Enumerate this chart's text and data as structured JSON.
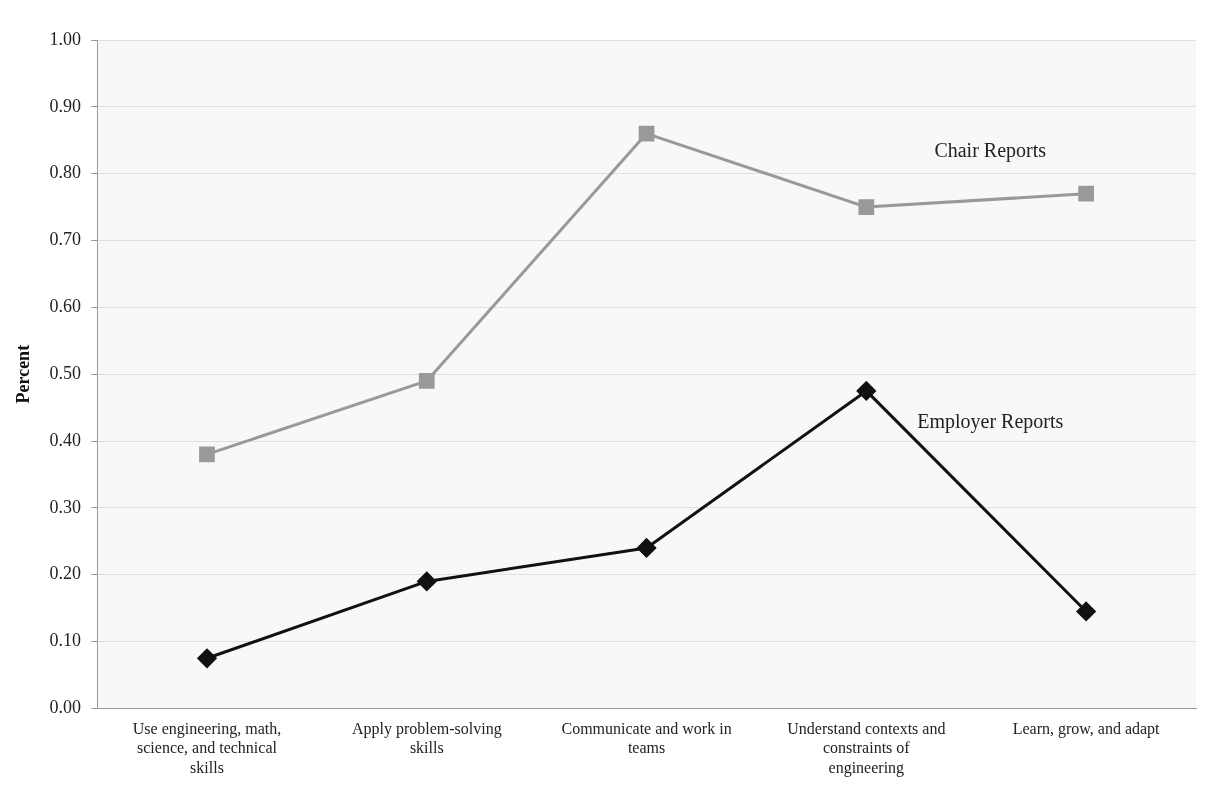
{
  "chart_data": {
    "type": "line",
    "ylabel": "Percent",
    "categories": [
      "Use engineering, math, science, and technical skills",
      "Apply problem-solving skills",
      "Communicate and work in teams",
      "Understand contexts and constraints of engineering",
      "Learn, grow, and adapt"
    ],
    "series": [
      {
        "name": "Chair Reports",
        "color": "#999999",
        "marker": "square",
        "values": [
          0.38,
          0.49,
          0.86,
          0.75,
          0.77
        ]
      },
      {
        "name": "Employer Reports",
        "color": "#111111",
        "marker": "diamond",
        "values": [
          0.075,
          0.19,
          0.24,
          0.475,
          0.145
        ]
      }
    ],
    "ylim": [
      0,
      1
    ],
    "yticks": [
      {
        "value": 0,
        "label": "0.00"
      },
      {
        "value": 0.1,
        "label": "0.10"
      },
      {
        "value": 0.2,
        "label": "0.20"
      },
      {
        "value": 0.3,
        "label": "0.30"
      },
      {
        "value": 0.4,
        "label": "0.40"
      },
      {
        "value": 0.5,
        "label": "0.50"
      },
      {
        "value": 0.6,
        "label": "0.60"
      },
      {
        "value": 0.7,
        "label": "0.70"
      },
      {
        "value": 0.8,
        "label": "0.80"
      },
      {
        "value": 0.9,
        "label": "0.90"
      },
      {
        "value": 1,
        "label": "1.00"
      }
    ],
    "grid": "y",
    "legend": false,
    "line_style": "solid"
  }
}
